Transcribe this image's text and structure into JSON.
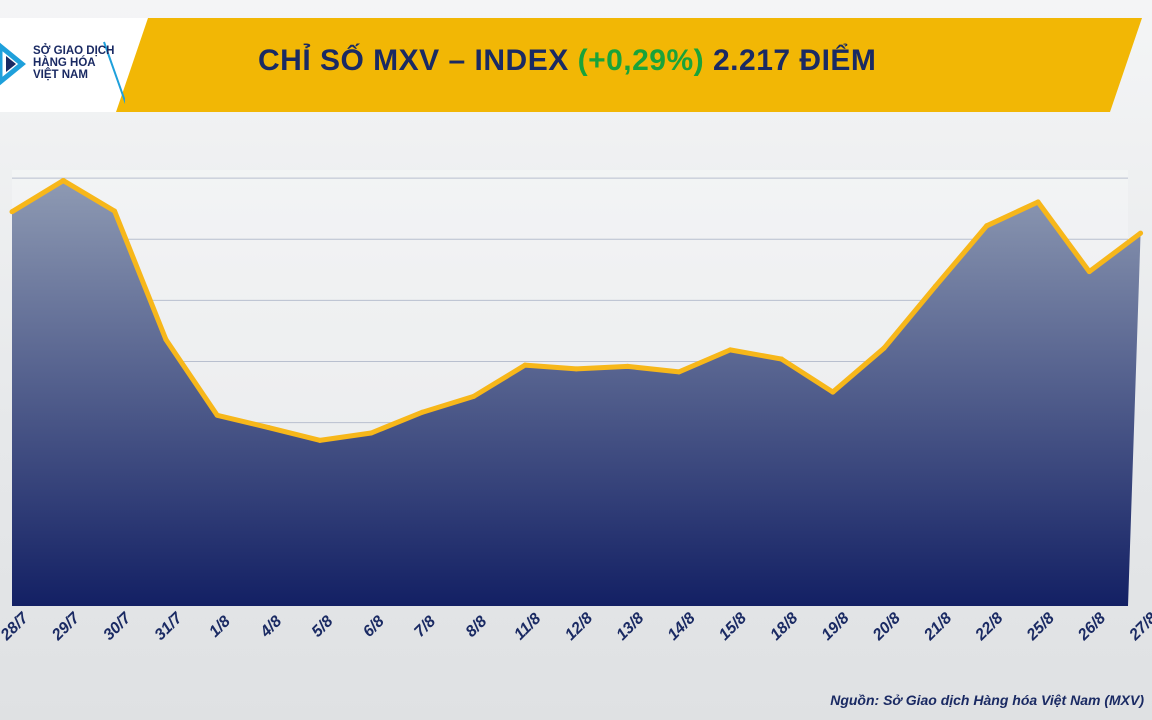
{
  "header": {
    "title_prefix": "CHỈ SỐ MXV – INDEX",
    "title_change": "(+0,29%)",
    "title_suffix": "2.217 ĐIỂM"
  },
  "logo": {
    "line1": "SỞ GIAO DỊCH",
    "line2": "HÀNG HÓA",
    "line3": "VIỆT NAM"
  },
  "source": "Nguồn: Sở Giao dịch Hàng hóa Việt Nam (MXV)",
  "colors": {
    "banner": "#f2b705",
    "title": "#1a2a63",
    "positive": "#19a33a",
    "line": "#f7b71a",
    "area_top": "#8e9ab3",
    "area_bottom": "#132064"
  },
  "chart_data": {
    "type": "area",
    "title": "CHỈ SỐ MXV – INDEX (+0,29%) 2.217 ĐIỂM",
    "x": [
      "28/7",
      "29/7",
      "30/7",
      "31/7",
      "1/8",
      "4/8",
      "5/8",
      "6/8",
      "7/8",
      "8/8",
      "11/8",
      "12/8",
      "13/8",
      "14/8",
      "15/8",
      "18/8",
      "19/8",
      "20/8",
      "21/8",
      "22/8",
      "25/8",
      "26/8",
      "27/8"
    ],
    "values": [
      2220.5,
      2225.6,
      2220.6,
      2199.6,
      2187.2,
      2185.2,
      2183.1,
      2184.3,
      2187.7,
      2190.3,
      2195.4,
      2194.8,
      2195.2,
      2194.3,
      2197.9,
      2196.4,
      2191.0,
      2198.2,
      2208.3,
      2218.2,
      2222.1,
      2210.7,
      2217.0
    ],
    "ylim": [
      2156,
      2236
    ],
    "grid": true,
    "legend": "none"
  }
}
